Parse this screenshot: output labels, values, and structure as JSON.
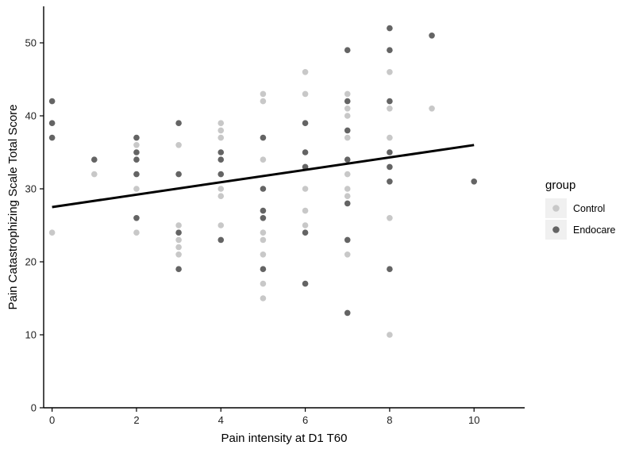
{
  "chart_data": {
    "type": "scatter",
    "xlabel": "Pain intensity at D1 T60",
    "ylabel": "Pain Catastrophizing Scale Total Score",
    "xlim": [
      -0.2,
      11.2
    ],
    "ylim": [
      0,
      55
    ],
    "xticks": [
      0,
      2,
      4,
      6,
      8,
      10
    ],
    "yticks": [
      0,
      10,
      20,
      30,
      40,
      50
    ],
    "grid": false,
    "legend": {
      "title": "group",
      "position": "right"
    },
    "series": [
      {
        "name": "Control",
        "color": "#c8c8c8",
        "points": [
          [
            0,
            24
          ],
          [
            1,
            32
          ],
          [
            2,
            36
          ],
          [
            2,
            30
          ],
          [
            2,
            24
          ],
          [
            3,
            36
          ],
          [
            3,
            25
          ],
          [
            3,
            23
          ],
          [
            3,
            22
          ],
          [
            3,
            21
          ],
          [
            4,
            39
          ],
          [
            4,
            38
          ],
          [
            4,
            37
          ],
          [
            4,
            30
          ],
          [
            4,
            29
          ],
          [
            4,
            25
          ],
          [
            5,
            43
          ],
          [
            5,
            42
          ],
          [
            5,
            34
          ],
          [
            5,
            24
          ],
          [
            5,
            23
          ],
          [
            5,
            21
          ],
          [
            5,
            17
          ],
          [
            5,
            15
          ],
          [
            6,
            46
          ],
          [
            6,
            43
          ],
          [
            6,
            33
          ],
          [
            6,
            30
          ],
          [
            6,
            27
          ],
          [
            6,
            25
          ],
          [
            7,
            43
          ],
          [
            7,
            41
          ],
          [
            7,
            40
          ],
          [
            7,
            37
          ],
          [
            7,
            32
          ],
          [
            7,
            30
          ],
          [
            7,
            29
          ],
          [
            7,
            21
          ],
          [
            8,
            46
          ],
          [
            8,
            41
          ],
          [
            8,
            37
          ],
          [
            8,
            26
          ],
          [
            8,
            10
          ],
          [
            9,
            41
          ]
        ]
      },
      {
        "name": "Endocare",
        "color": "#646464",
        "points": [
          [
            0,
            42
          ],
          [
            0,
            39
          ],
          [
            0,
            37
          ],
          [
            1,
            34
          ],
          [
            2,
            37
          ],
          [
            2,
            35
          ],
          [
            2,
            34
          ],
          [
            2,
            32
          ],
          [
            2,
            26
          ],
          [
            3,
            39
          ],
          [
            3,
            32
          ],
          [
            3,
            24
          ],
          [
            3,
            19
          ],
          [
            4,
            35
          ],
          [
            4,
            34
          ],
          [
            4,
            32
          ],
          [
            4,
            23
          ],
          [
            5,
            37
          ],
          [
            5,
            30
          ],
          [
            5,
            27
          ],
          [
            5,
            26
          ],
          [
            5,
            19
          ],
          [
            6,
            39
          ],
          [
            6,
            35
          ],
          [
            6,
            33
          ],
          [
            6,
            24
          ],
          [
            6,
            17
          ],
          [
            7,
            49
          ],
          [
            7,
            42
          ],
          [
            7,
            38
          ],
          [
            7,
            34
          ],
          [
            7,
            28
          ],
          [
            7,
            23
          ],
          [
            7,
            13
          ],
          [
            8,
            52
          ],
          [
            8,
            49
          ],
          [
            8,
            42
          ],
          [
            8,
            35
          ],
          [
            8,
            33
          ],
          [
            8,
            31
          ],
          [
            8,
            19
          ],
          [
            9,
            51
          ],
          [
            10,
            31
          ]
        ]
      }
    ],
    "regression_line": {
      "x": [
        0,
        10
      ],
      "y": [
        27.5,
        36
      ],
      "color": "#000000"
    }
  }
}
